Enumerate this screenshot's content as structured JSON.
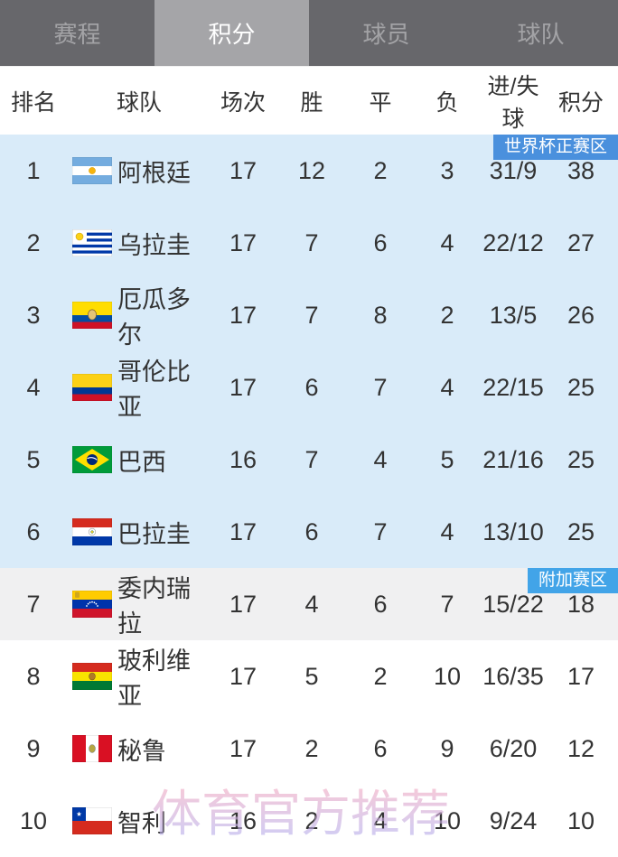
{
  "tabs": [
    {
      "label": "赛程",
      "active": false
    },
    {
      "label": "积分",
      "active": true
    },
    {
      "label": "球员",
      "active": false
    },
    {
      "label": "球队",
      "active": false
    }
  ],
  "table": {
    "headers": {
      "rank": "排名",
      "team": "球队",
      "played": "场次",
      "win": "胜",
      "draw": "平",
      "loss": "负",
      "goals": "进/失球",
      "points": "积分"
    },
    "rows": [
      {
        "rank": "1",
        "flag": "argentina",
        "team": "阿根廷",
        "played": "17",
        "win": "12",
        "draw": "2",
        "loss": "3",
        "goals": "31/9",
        "points": "38",
        "zone": "direct",
        "badge": "世界杯正赛区"
      },
      {
        "rank": "2",
        "flag": "uruguay",
        "team": "乌拉圭",
        "played": "17",
        "win": "7",
        "draw": "6",
        "loss": "4",
        "goals": "22/12",
        "points": "27",
        "zone": "direct"
      },
      {
        "rank": "3",
        "flag": "ecuador",
        "team": "厄瓜多尔",
        "played": "17",
        "win": "7",
        "draw": "8",
        "loss": "2",
        "goals": "13/5",
        "points": "26",
        "zone": "direct"
      },
      {
        "rank": "4",
        "flag": "colombia",
        "team": "哥伦比亚",
        "played": "17",
        "win": "6",
        "draw": "7",
        "loss": "4",
        "goals": "22/15",
        "points": "25",
        "zone": "direct"
      },
      {
        "rank": "5",
        "flag": "brazil",
        "team": "巴西",
        "played": "16",
        "win": "7",
        "draw": "4",
        "loss": "5",
        "goals": "21/16",
        "points": "25",
        "zone": "direct"
      },
      {
        "rank": "6",
        "flag": "paraguay",
        "team": "巴拉圭",
        "played": "17",
        "win": "6",
        "draw": "7",
        "loss": "4",
        "goals": "13/10",
        "points": "25",
        "zone": "direct"
      },
      {
        "rank": "7",
        "flag": "venezuela",
        "team": "委内瑞拉",
        "played": "17",
        "win": "4",
        "draw": "6",
        "loss": "7",
        "goals": "15/22",
        "points": "18",
        "zone": "playoff",
        "badge": "附加赛区"
      },
      {
        "rank": "8",
        "flag": "bolivia",
        "team": "玻利维亚",
        "played": "17",
        "win": "5",
        "draw": "2",
        "loss": "10",
        "goals": "16/35",
        "points": "17",
        "zone": "out"
      },
      {
        "rank": "9",
        "flag": "peru",
        "team": "秘鲁",
        "played": "17",
        "win": "2",
        "draw": "6",
        "loss": "9",
        "goals": "6/20",
        "points": "12",
        "zone": "out"
      },
      {
        "rank": "10",
        "flag": "chile",
        "team": "智利",
        "played": "16",
        "win": "2",
        "draw": "4",
        "loss": "10",
        "goals": "9/24",
        "points": "10",
        "zone": "out"
      }
    ]
  },
  "watermark": "体育官方推荐",
  "colors": {
    "bar_bg": "#67676b",
    "tab_active_bg": "#a5a5a8",
    "tab_inactive_text": "#a3a3a6",
    "direct_badge": "#4a90dd",
    "playoff_badge": "#42a4e8",
    "direct_row_bg": "#d9ebf9",
    "playoff_row_bg": "#f0f0f1"
  }
}
